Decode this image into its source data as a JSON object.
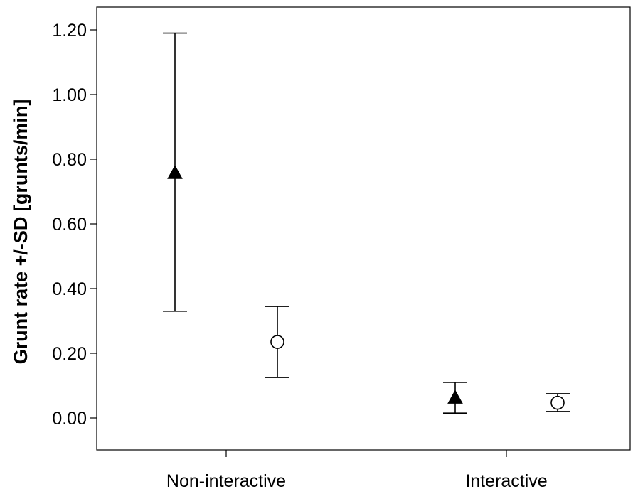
{
  "chart_data": {
    "type": "scatter",
    "title": "",
    "xlabel": "",
    "ylabel": "Grunt rate +/-SD [grunts/min]",
    "categories": [
      "Non-interactive",
      "Interactive"
    ],
    "yticks": [
      "0.00",
      "0.20",
      "0.40",
      "0.60",
      "0.80",
      "1.00",
      "1.20"
    ],
    "ylim": [
      -0.1,
      1.3
    ],
    "grid": false,
    "legend": "none",
    "series": [
      {
        "marker": "filled-triangle",
        "color": "#000000",
        "points": [
          {
            "category": "Non-interactive",
            "mean": 0.76,
            "sd_low": 0.33,
            "sd_high": 1.19
          },
          {
            "category": "Interactive",
            "mean": 0.065,
            "sd_low": 0.015,
            "sd_high": 0.11
          }
        ]
      },
      {
        "marker": "open-circle",
        "color": "#000000",
        "points": [
          {
            "category": "Non-interactive",
            "mean": 0.235,
            "sd_low": 0.125,
            "sd_high": 0.345
          },
          {
            "category": "Interactive",
            "mean": 0.047,
            "sd_low": 0.02,
            "sd_high": 0.075
          }
        ]
      }
    ]
  }
}
